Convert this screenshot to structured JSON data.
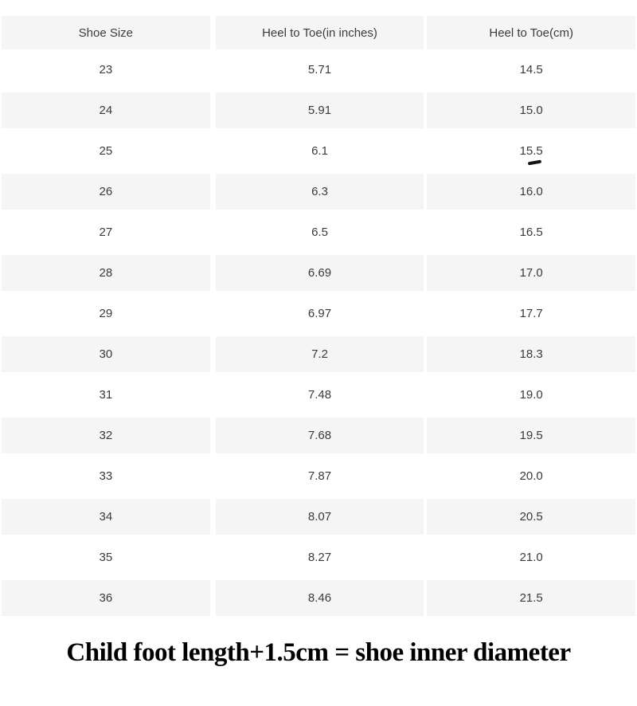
{
  "chart_data": {
    "type": "table",
    "columns": [
      "Shoe Size",
      "Heel to Toe(in inches)",
      "Heel to Toe(cm)"
    ],
    "rows": [
      {
        "size": "23",
        "inches": "5.71",
        "cm": "14.5"
      },
      {
        "size": "24",
        "inches": "5.91",
        "cm": "15.0"
      },
      {
        "size": "25",
        "inches": "6.1",
        "cm": "15.5",
        "pen_mark": true
      },
      {
        "size": "26",
        "inches": "6.3",
        "cm": "16.0"
      },
      {
        "size": "27",
        "inches": "6.5",
        "cm": "16.5"
      },
      {
        "size": "28",
        "inches": "6.69",
        "cm": "17.0"
      },
      {
        "size": "29",
        "inches": "6.97",
        "cm": "17.7"
      },
      {
        "size": "30",
        "inches": "7.2",
        "cm": "18.3"
      },
      {
        "size": "31",
        "inches": "7.48",
        "cm": "19.0"
      },
      {
        "size": "32",
        "inches": "7.68",
        "cm": "19.5"
      },
      {
        "size": "33",
        "inches": "7.87",
        "cm": "20.0"
      },
      {
        "size": "34",
        "inches": "8.07",
        "cm": "20.5"
      },
      {
        "size": "35",
        "inches": "8.27",
        "cm": "21.0"
      },
      {
        "size": "36",
        "inches": "8.46",
        "cm": "21.5"
      }
    ],
    "title": "",
    "legend": "none",
    "grid": "alternating-row-shading"
  },
  "caption": {
    "text": "Child foot length+1.5cm = shoe inner diameter"
  },
  "colors": {
    "row_alt_bg": "#f5f5f5",
    "table_text": "#3b3b3b",
    "caption_text": "#000000",
    "pen_mark": "#141414",
    "page_bg": "#ffffff"
  }
}
